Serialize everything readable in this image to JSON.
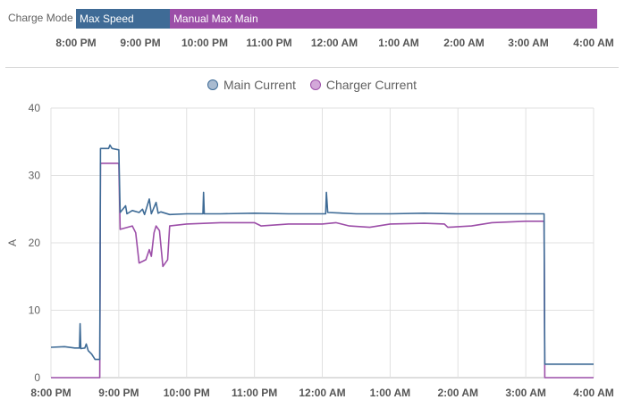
{
  "timeline": {
    "label": "Charge Mode",
    "segments": [
      {
        "label": "Max Speed",
        "start": 20.0,
        "end": 21.45,
        "color": "#3f6b96"
      },
      {
        "label": "Manual Max Main",
        "start": 21.45,
        "end": 28.05,
        "color": "#9c4ea8"
      }
    ],
    "ticks": [
      "8:00 PM",
      "9:00 PM",
      "10:00 PM",
      "11:00 PM",
      "12:00 AM",
      "1:00 AM",
      "2:00 AM",
      "3:00 AM",
      "4:00 AM"
    ]
  },
  "chart_data": {
    "type": "line",
    "title": "",
    "xlabel": "",
    "ylabel": "A",
    "xlim": [
      20,
      28
    ],
    "ylim": [
      0,
      40
    ],
    "yticks": [
      0,
      10,
      20,
      30,
      40
    ],
    "xticks": [
      "8:00 PM",
      "9:00 PM",
      "10:00 PM",
      "11:00 PM",
      "12:00 AM",
      "1:00 AM",
      "2:00 AM",
      "3:00 AM",
      "4:00 AM"
    ],
    "grid": true,
    "legend_position": "top-center",
    "series": [
      {
        "name": "Main Current",
        "color": "#3e6b96",
        "fill": "#a9bbd0",
        "points": [
          [
            20.0,
            4.5
          ],
          [
            20.2,
            4.6
          ],
          [
            20.35,
            4.4
          ],
          [
            20.42,
            4.4
          ],
          [
            20.43,
            8.0
          ],
          [
            20.44,
            4.3
          ],
          [
            20.5,
            4.4
          ],
          [
            20.52,
            5.0
          ],
          [
            20.55,
            4.0
          ],
          [
            20.6,
            3.5
          ],
          [
            20.65,
            2.7
          ],
          [
            20.72,
            2.7
          ],
          [
            20.73,
            34.0
          ],
          [
            20.85,
            34.0
          ],
          [
            20.87,
            34.5
          ],
          [
            20.9,
            34.0
          ],
          [
            21.0,
            33.8
          ],
          [
            21.02,
            24.5
          ],
          [
            21.1,
            25.5
          ],
          [
            21.12,
            24.3
          ],
          [
            21.2,
            24.8
          ],
          [
            21.3,
            24.5
          ],
          [
            21.35,
            25.0
          ],
          [
            21.38,
            24.2
          ],
          [
            21.45,
            26.5
          ],
          [
            21.48,
            24.3
          ],
          [
            21.55,
            26.0
          ],
          [
            21.58,
            24.4
          ],
          [
            21.62,
            24.6
          ],
          [
            21.75,
            24.2
          ],
          [
            22.0,
            24.3
          ],
          [
            22.24,
            24.3
          ],
          [
            22.25,
            27.5
          ],
          [
            22.26,
            24.3
          ],
          [
            22.5,
            24.3
          ],
          [
            23.0,
            24.4
          ],
          [
            23.5,
            24.3
          ],
          [
            24.05,
            24.3
          ],
          [
            24.06,
            27.5
          ],
          [
            24.08,
            24.5
          ],
          [
            24.5,
            24.3
          ],
          [
            25.0,
            24.3
          ],
          [
            25.5,
            24.4
          ],
          [
            26.0,
            24.3
          ],
          [
            26.5,
            24.3
          ],
          [
            27.0,
            24.3
          ],
          [
            27.27,
            24.3
          ],
          [
            27.28,
            2.0
          ],
          [
            27.5,
            2.0
          ],
          [
            28.0,
            2.0
          ]
        ]
      },
      {
        "name": "Charger Current",
        "color": "#9c4ea8",
        "fill": "#d3a8d9",
        "points": [
          [
            20.0,
            0.0
          ],
          [
            20.72,
            0.0
          ],
          [
            20.73,
            31.8
          ],
          [
            21.0,
            31.8
          ],
          [
            21.02,
            22.0
          ],
          [
            21.2,
            22.5
          ],
          [
            21.25,
            21.5
          ],
          [
            21.3,
            17.0
          ],
          [
            21.4,
            17.5
          ],
          [
            21.45,
            19.0
          ],
          [
            21.48,
            18.0
          ],
          [
            21.52,
            21.5
          ],
          [
            21.55,
            22.5
          ],
          [
            21.6,
            21.8
          ],
          [
            21.65,
            16.5
          ],
          [
            21.72,
            17.5
          ],
          [
            21.75,
            22.5
          ],
          [
            22.0,
            22.8
          ],
          [
            22.5,
            23.0
          ],
          [
            23.0,
            23.0
          ],
          [
            23.1,
            22.5
          ],
          [
            23.5,
            22.8
          ],
          [
            24.0,
            22.8
          ],
          [
            24.2,
            23.0
          ],
          [
            24.4,
            22.5
          ],
          [
            24.7,
            22.3
          ],
          [
            25.0,
            22.8
          ],
          [
            25.5,
            22.9
          ],
          [
            25.8,
            22.8
          ],
          [
            25.85,
            22.3
          ],
          [
            26.2,
            22.5
          ],
          [
            26.5,
            23.0
          ],
          [
            27.0,
            23.2
          ],
          [
            27.27,
            23.2
          ],
          [
            27.28,
            0.0
          ],
          [
            28.0,
            0.0
          ]
        ]
      }
    ]
  }
}
